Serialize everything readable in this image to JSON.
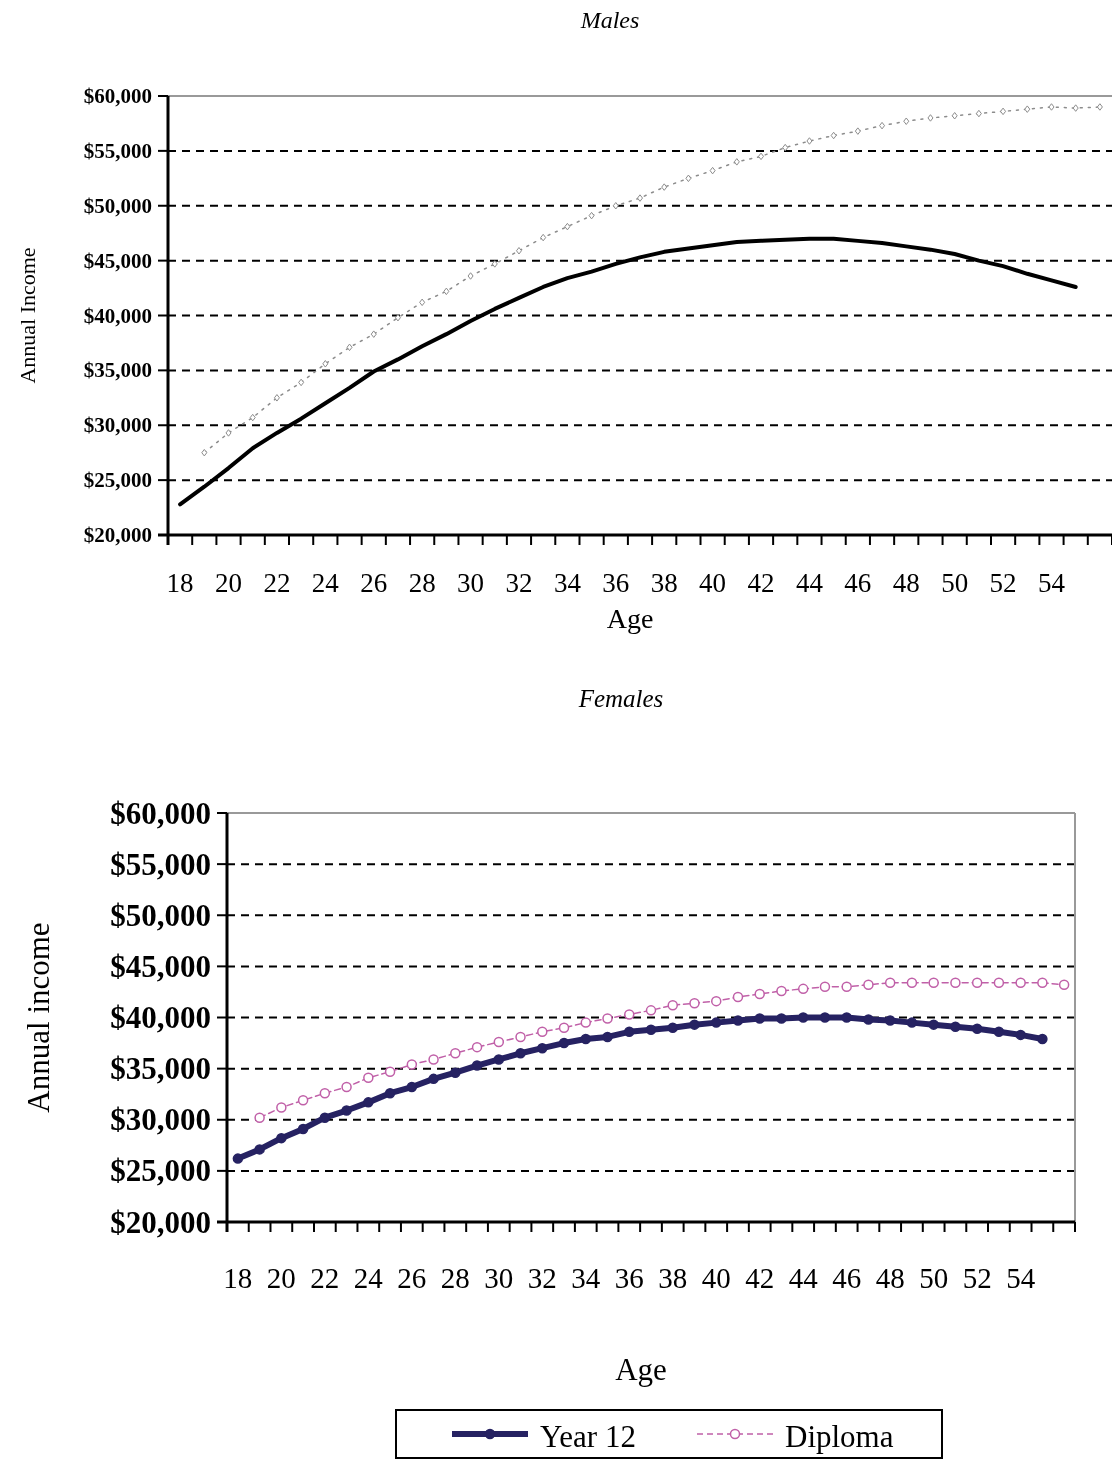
{
  "chart_data": [
    {
      "type": "line",
      "title": "Males",
      "xlabel": "Age",
      "ylabel": "Annual Income",
      "categories": [
        "18",
        null,
        "20",
        null,
        "22",
        null,
        "24",
        null,
        "26",
        null,
        "28",
        null,
        "30",
        null,
        "32",
        null,
        "34",
        null,
        "36",
        null,
        "38",
        null,
        "40",
        null,
        "42",
        null,
        "44",
        null,
        "46",
        null,
        "48",
        null,
        "50",
        null,
        "52",
        null,
        "54",
        null,
        null
      ],
      "series": [
        {
          "color": "#000000",
          "marker": "none",
          "line_style": "solid",
          "values": [
            22800,
            24400,
            26100,
            27900,
            29300,
            30600,
            32000,
            33400,
            34900,
            36000,
            37200,
            38300,
            39500,
            40600,
            41600,
            42600,
            43400,
            44000,
            44700,
            45300,
            45800,
            46100,
            46400,
            46700,
            46800,
            46900,
            47000,
            47000,
            46800,
            46600,
            46300,
            46000,
            45600,
            45000,
            44500,
            43800,
            43200,
            42600,
            null
          ]
        },
        {
          "color": "#8c8c8c",
          "marker": "diamond",
          "line_style": "dotted",
          "values": [
            null,
            27500,
            29300,
            30700,
            32500,
            33900,
            35600,
            37100,
            38300,
            39800,
            41200,
            42200,
            43600,
            44700,
            45900,
            47100,
            48100,
            49100,
            50000,
            50700,
            51700,
            52500,
            53200,
            54000,
            54500,
            55300,
            55900,
            56400,
            56800,
            57300,
            57700,
            58000,
            58200,
            58400,
            58600,
            58800,
            59000,
            58900,
            59000
          ]
        }
      ],
      "ylim": [
        20000,
        60000
      ],
      "yticks": [
        {
          "value": 20000,
          "label": "$20,000"
        },
        {
          "value": 25000,
          "label": "$25,000"
        },
        {
          "value": 30000,
          "label": "$30,000"
        },
        {
          "value": 35000,
          "label": "$35,000"
        },
        {
          "value": 40000,
          "label": "$40,000"
        },
        {
          "value": 45000,
          "label": "$45,000"
        },
        {
          "value": 50000,
          "label": "$50,000"
        },
        {
          "value": 55000,
          "label": "$55,000"
        },
        {
          "value": 60000,
          "label": "$60,000"
        }
      ],
      "grid": "y"
    },
    {
      "type": "line",
      "title": "Females",
      "xlabel": "Age",
      "ylabel": "Annual income",
      "categories": [
        "18",
        null,
        "20",
        null,
        "22",
        null,
        "24",
        null,
        "26",
        null,
        "28",
        null,
        "30",
        null,
        "32",
        null,
        "34",
        null,
        "36",
        null,
        "38",
        null,
        "40",
        null,
        "42",
        null,
        "44",
        null,
        "46",
        null,
        "48",
        null,
        "50",
        null,
        "52",
        null,
        "54",
        null,
        null
      ],
      "series": [
        {
          "name": "Year 12",
          "color": "#262262",
          "marker": "circle",
          "line_style": "solid",
          "values": [
            26200,
            27100,
            28200,
            29100,
            30200,
            30900,
            31700,
            32600,
            33200,
            34000,
            34600,
            35300,
            35900,
            36500,
            37000,
            37500,
            37900,
            38100,
            38600,
            38800,
            39000,
            39300,
            39500,
            39700,
            39900,
            39900,
            40000,
            40000,
            40000,
            39800,
            39700,
            39500,
            39300,
            39100,
            38900,
            38600,
            38300,
            37900,
            null
          ]
        },
        {
          "name": "Diploma",
          "color": "#c060a8",
          "marker": "circle",
          "line_style": "dashed",
          "values": [
            null,
            30200,
            31200,
            31900,
            32600,
            33200,
            34100,
            34700,
            35400,
            35900,
            36500,
            37100,
            37600,
            38100,
            38600,
            39000,
            39500,
            39900,
            40300,
            40700,
            41200,
            41400,
            41600,
            42000,
            42300,
            42600,
            42800,
            43000,
            43000,
            43200,
            43400,
            43400,
            43400,
            43400,
            43400,
            43400,
            43400,
            43400,
            43200
          ]
        }
      ],
      "ylim": [
        20000,
        60000
      ],
      "yticks": [
        {
          "value": 20000,
          "label": "$20,000"
        },
        {
          "value": 25000,
          "label": "$25,000"
        },
        {
          "value": 30000,
          "label": "$30,000"
        },
        {
          "value": 35000,
          "label": "$35,000"
        },
        {
          "value": 40000,
          "label": "$40,000"
        },
        {
          "value": 45000,
          "label": "$45,000"
        },
        {
          "value": 50000,
          "label": "$50,000"
        },
        {
          "value": 55000,
          "label": "$55,000"
        },
        {
          "value": 60000,
          "label": "$60,000"
        }
      ],
      "grid": "y",
      "legend": "bottom"
    }
  ]
}
